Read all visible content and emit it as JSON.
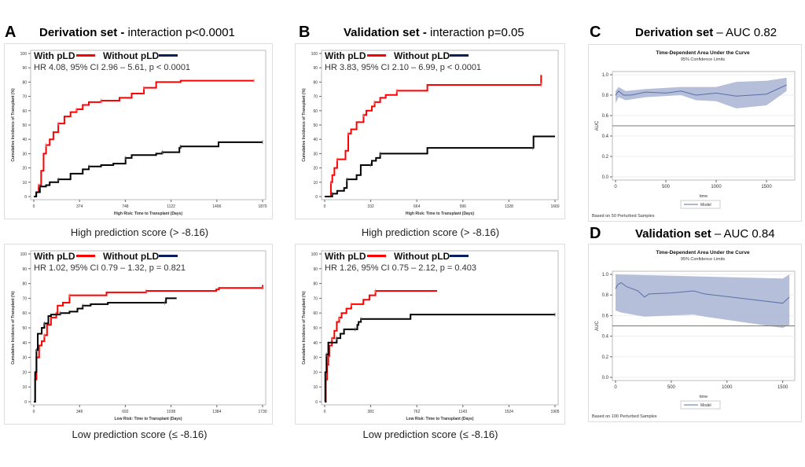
{
  "panels": {
    "A": {
      "letter": "A",
      "title_bold": "Derivation set -",
      "title_rest": " interaction p<0.0001",
      "caption_top": "High prediction score (> -8.16)",
      "caption_bottom": "Low prediction score (≤ -8.16)"
    },
    "B": {
      "letter": "B",
      "title_bold": "Validation set -",
      "title_rest": " interaction p=0.05",
      "caption_top": "High prediction score (> -8.16)",
      "caption_bottom": "Low prediction score (≤ -8.16)"
    },
    "C": {
      "letter": "C",
      "title_bold": "Derivation set",
      "title_rest": " – AUC 0.82"
    },
    "D": {
      "letter": "D",
      "title_bold": "Validation set",
      "title_rest": " – AUC 0.84"
    }
  },
  "colors": {
    "with_pld": "#ff0000",
    "without_pld_legend": "#0a1f5c",
    "without_pld_line": "#000000",
    "auc_band": "#a9b4d3",
    "auc_line": "#5a6fa8"
  },
  "chart_data": [
    {
      "id": "A-high",
      "type": "line",
      "legend": [
        "With pLD",
        "Without pLD"
      ],
      "annotation": "HR 4.08, 95% CI 2.96 – 5.61, p < 0.0001",
      "xlabel": "High Risk: Time to Transplant (Days)",
      "ylabel": "Cumulative Incidence of Transplant (%)",
      "xlim": [
        0,
        1870
      ],
      "ylim": [
        0,
        100
      ],
      "xticks": [
        0,
        374,
        748,
        1122,
        1496,
        1870
      ],
      "yticks": [
        0,
        10,
        20,
        30,
        40,
        50,
        60,
        70,
        80,
        90,
        100
      ],
      "series": [
        {
          "name": "With pLD",
          "step": true,
          "points": [
            [
              0,
              0
            ],
            [
              20,
              3
            ],
            [
              40,
              8
            ],
            [
              60,
              18
            ],
            [
              80,
              30
            ],
            [
              100,
              36
            ],
            [
              130,
              40
            ],
            [
              160,
              45
            ],
            [
              200,
              51
            ],
            [
              250,
              56
            ],
            [
              300,
              59
            ],
            [
              350,
              61
            ],
            [
              400,
              64
            ],
            [
              450,
              66
            ],
            [
              550,
              67
            ],
            [
              700,
              69
            ],
            [
              800,
              72
            ],
            [
              900,
              76
            ],
            [
              1000,
              80
            ],
            [
              1200,
              81
            ],
            [
              1800,
              81
            ]
          ]
        },
        {
          "name": "Without pLD",
          "step": true,
          "points": [
            [
              0,
              0
            ],
            [
              20,
              3
            ],
            [
              50,
              7
            ],
            [
              100,
              8
            ],
            [
              130,
              10
            ],
            [
              200,
              12
            ],
            [
              300,
              16
            ],
            [
              400,
              19
            ],
            [
              450,
              21
            ],
            [
              550,
              22
            ],
            [
              650,
              23
            ],
            [
              750,
              27
            ],
            [
              800,
              29
            ],
            [
              1000,
              30
            ],
            [
              1050,
              31
            ],
            [
              1180,
              31
            ],
            [
              1190,
              34
            ],
            [
              1200,
              35
            ],
            [
              1500,
              35
            ],
            [
              1510,
              38
            ],
            [
              1870,
              38
            ]
          ]
        }
      ]
    },
    {
      "id": "B-high",
      "type": "line",
      "legend": [
        "With pLD",
        "Without pLD"
      ],
      "annotation": "HR 3.83, 95% CI 2.10 – 6.99, p < 0.0001",
      "xlabel": "High Risk: Time to Transplant (Days)",
      "ylabel": "Cumulative Incidence of Transplant (%)",
      "xlim": [
        0,
        1660
      ],
      "ylim": [
        0,
        100
      ],
      "xticks": [
        0,
        332,
        664,
        996,
        1328,
        1660
      ],
      "yticks": [
        0,
        10,
        20,
        30,
        40,
        50,
        60,
        70,
        80,
        90,
        100
      ],
      "series": [
        {
          "name": "With pLD",
          "step": true,
          "points": [
            [
              0,
              0
            ],
            [
              40,
              0
            ],
            [
              45,
              10
            ],
            [
              55,
              15
            ],
            [
              70,
              20
            ],
            [
              90,
              26
            ],
            [
              140,
              26
            ],
            [
              150,
              32
            ],
            [
              170,
              44
            ],
            [
              190,
              47
            ],
            [
              230,
              52
            ],
            [
              280,
              57
            ],
            [
              300,
              60
            ],
            [
              340,
              63
            ],
            [
              360,
              66
            ],
            [
              400,
              69
            ],
            [
              440,
              71
            ],
            [
              520,
              74
            ],
            [
              730,
              74
            ],
            [
              740,
              78
            ],
            [
              1560,
              78
            ],
            [
              1560,
              85
            ]
          ]
        },
        {
          "name": "Without pLD",
          "step": true,
          "points": [
            [
              0,
              0
            ],
            [
              50,
              0
            ],
            [
              55,
              2
            ],
            [
              90,
              4
            ],
            [
              140,
              6
            ],
            [
              160,
              12
            ],
            [
              230,
              15
            ],
            [
              260,
              22
            ],
            [
              330,
              22
            ],
            [
              340,
              25
            ],
            [
              370,
              27
            ],
            [
              400,
              30
            ],
            [
              730,
              30
            ],
            [
              740,
              34
            ],
            [
              1500,
              34
            ],
            [
              1505,
              42
            ],
            [
              1660,
              42
            ]
          ]
        }
      ]
    },
    {
      "id": "A-low",
      "type": "line",
      "legend": [
        "With pLD",
        "Without pLD"
      ],
      "annotation": "HR 1.02, 95% CI 0.79 – 1.32, p = 0.821",
      "xlabel": "Low Risk: Time to Transplant (Days)",
      "ylabel": "Cumulative Incidence of Transplant (%)",
      "xlim": [
        0,
        1730
      ],
      "ylim": [
        0,
        100
      ],
      "xticks": [
        0,
        346,
        692,
        1038,
        1384,
        1730
      ],
      "yticks": [
        0,
        10,
        20,
        30,
        40,
        50,
        60,
        70,
        80,
        90,
        100
      ],
      "series": [
        {
          "name": "With pLD",
          "step": true,
          "points": [
            [
              0,
              0
            ],
            [
              10,
              15
            ],
            [
              20,
              30
            ],
            [
              40,
              38
            ],
            [
              60,
              41
            ],
            [
              80,
              45
            ],
            [
              100,
              52
            ],
            [
              130,
              57
            ],
            [
              170,
              60
            ],
            [
              180,
              65
            ],
            [
              220,
              67
            ],
            [
              270,
              72
            ],
            [
              540,
              72
            ],
            [
              550,
              74
            ],
            [
              850,
              75
            ],
            [
              1380,
              76
            ],
            [
              1400,
              77
            ],
            [
              1730,
              77
            ],
            [
              1730,
              79
            ]
          ]
        },
        {
          "name": "Without pLD",
          "step": true,
          "points": [
            [
              0,
              0
            ],
            [
              10,
              20
            ],
            [
              20,
              35
            ],
            [
              30,
              46
            ],
            [
              60,
              50
            ],
            [
              80,
              53
            ],
            [
              110,
              58
            ],
            [
              130,
              59
            ],
            [
              200,
              60
            ],
            [
              270,
              61
            ],
            [
              330,
              63
            ],
            [
              370,
              65
            ],
            [
              430,
              66
            ],
            [
              560,
              67
            ],
            [
              990,
              67
            ],
            [
              1000,
              70
            ],
            [
              1080,
              70
            ]
          ]
        }
      ]
    },
    {
      "id": "B-low",
      "type": "line",
      "legend": [
        "With pLD",
        "Without pLD"
      ],
      "annotation": "HR 1.26, 95% CI 0.75 – 2.12, p = 0.403",
      "xlabel": "Low Risk: Time to Transplant (Days)",
      "ylabel": "Cumulative Incidence of Transplant (%)",
      "xlim": [
        0,
        1905
      ],
      "ylim": [
        0,
        100
      ],
      "xticks": [
        0,
        381,
        762,
        1143,
        1524,
        1905
      ],
      "yticks": [
        0,
        10,
        20,
        30,
        40,
        50,
        60,
        70,
        80,
        90,
        100
      ],
      "series": [
        {
          "name": "With pLD",
          "step": true,
          "points": [
            [
              0,
              0
            ],
            [
              10,
              15
            ],
            [
              20,
              25
            ],
            [
              30,
              31
            ],
            [
              40,
              38
            ],
            [
              60,
              43
            ],
            [
              80,
              48
            ],
            [
              100,
              54
            ],
            [
              120,
              57
            ],
            [
              140,
              60
            ],
            [
              180,
              63
            ],
            [
              220,
              66
            ],
            [
              320,
              69
            ],
            [
              370,
              72
            ],
            [
              420,
              75
            ],
            [
              930,
              75
            ]
          ]
        },
        {
          "name": "Without pLD",
          "step": true,
          "points": [
            [
              0,
              0
            ],
            [
              5,
              20
            ],
            [
              15,
              32
            ],
            [
              30,
              40
            ],
            [
              80,
              40
            ],
            [
              100,
              43
            ],
            [
              130,
              46
            ],
            [
              160,
              49
            ],
            [
              250,
              49
            ],
            [
              270,
              52
            ],
            [
              280,
              54
            ],
            [
              300,
              56
            ],
            [
              700,
              56
            ],
            [
              710,
              59
            ],
            [
              1905,
              59
            ]
          ]
        }
      ]
    },
    {
      "id": "C",
      "type": "area",
      "title": "Time-Dependent Area Under the Curve",
      "subtitle": "95% Confidence Limits",
      "xlabel": "time",
      "ylabel": "AUC",
      "legend": [
        "Model"
      ],
      "footnote": "Based on 50 Perturbed Samples",
      "xlim": [
        0,
        1750
      ],
      "ylim": [
        0,
        1
      ],
      "xticks": [
        0,
        500,
        1000,
        1500
      ],
      "yticks": [
        0.0,
        0.2,
        0.4,
        0.6,
        0.8,
        1.0
      ],
      "reference": 0.5,
      "mean": [
        [
          0,
          0.8
        ],
        [
          30,
          0.84
        ],
        [
          80,
          0.8
        ],
        [
          150,
          0.8
        ],
        [
          300,
          0.83
        ],
        [
          500,
          0.82
        ],
        [
          650,
          0.84
        ],
        [
          800,
          0.8
        ],
        [
          1000,
          0.82
        ],
        [
          1200,
          0.79
        ],
        [
          1500,
          0.81
        ],
        [
          1700,
          0.9
        ]
      ],
      "upper": [
        [
          0,
          0.84
        ],
        [
          30,
          0.88
        ],
        [
          100,
          0.84
        ],
        [
          300,
          0.86
        ],
        [
          650,
          0.88
        ],
        [
          1000,
          0.88
        ],
        [
          1200,
          0.93
        ],
        [
          1500,
          0.94
        ],
        [
          1700,
          0.97
        ]
      ],
      "lower": [
        [
          0,
          0.72
        ],
        [
          30,
          0.78
        ],
        [
          100,
          0.75
        ],
        [
          300,
          0.78
        ],
        [
          650,
          0.8
        ],
        [
          800,
          0.75
        ],
        [
          1000,
          0.74
        ],
        [
          1200,
          0.67
        ],
        [
          1500,
          0.7
        ],
        [
          1700,
          0.84
        ]
      ]
    },
    {
      "id": "D",
      "type": "area",
      "title": "Time-Dependent Area Under the Curve",
      "subtitle": "95% Confidence Limits",
      "xlabel": "time",
      "ylabel": "AUC",
      "legend": [
        "Model"
      ],
      "footnote": "Based on 100 Perturbed Samples",
      "xlim": [
        0,
        1580
      ],
      "ylim": [
        0,
        1
      ],
      "xticks": [
        0,
        500,
        1000,
        1500
      ],
      "yticks": [
        0.0,
        0.2,
        0.4,
        0.6,
        0.8,
        1.0
      ],
      "reference": 0.5,
      "mean": [
        [
          0,
          0.86
        ],
        [
          20,
          0.9
        ],
        [
          50,
          0.92
        ],
        [
          100,
          0.88
        ],
        [
          200,
          0.84
        ],
        [
          260,
          0.78
        ],
        [
          300,
          0.81
        ],
        [
          500,
          0.82
        ],
        [
          700,
          0.84
        ],
        [
          800,
          0.81
        ],
        [
          1500,
          0.72
        ],
        [
          1560,
          0.78
        ]
      ],
      "upper": [
        [
          0,
          1.0
        ],
        [
          1500,
          0.96
        ],
        [
          1560,
          1.0
        ]
      ],
      "lower": [
        [
          0,
          0.65
        ],
        [
          50,
          0.63
        ],
        [
          260,
          0.59
        ],
        [
          700,
          0.61
        ],
        [
          800,
          0.59
        ],
        [
          1500,
          0.48
        ],
        [
          1560,
          0.51
        ]
      ]
    }
  ]
}
